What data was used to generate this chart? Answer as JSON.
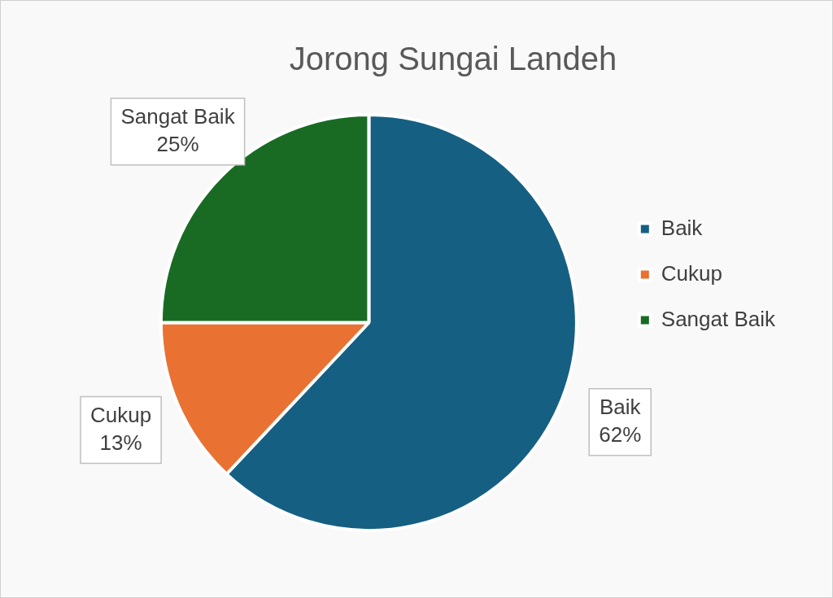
{
  "chart_data": {
    "type": "pie",
    "title": "Jorong Sungai Landeh",
    "categories": [
      "Baik",
      "Cukup",
      "Sangat Baik"
    ],
    "values": [
      62,
      13,
      25
    ],
    "value_labels": [
      "62%",
      "13%",
      "25%"
    ],
    "colors": [
      "#155f83",
      "#e97132",
      "#196b24"
    ],
    "legend": "right"
  }
}
